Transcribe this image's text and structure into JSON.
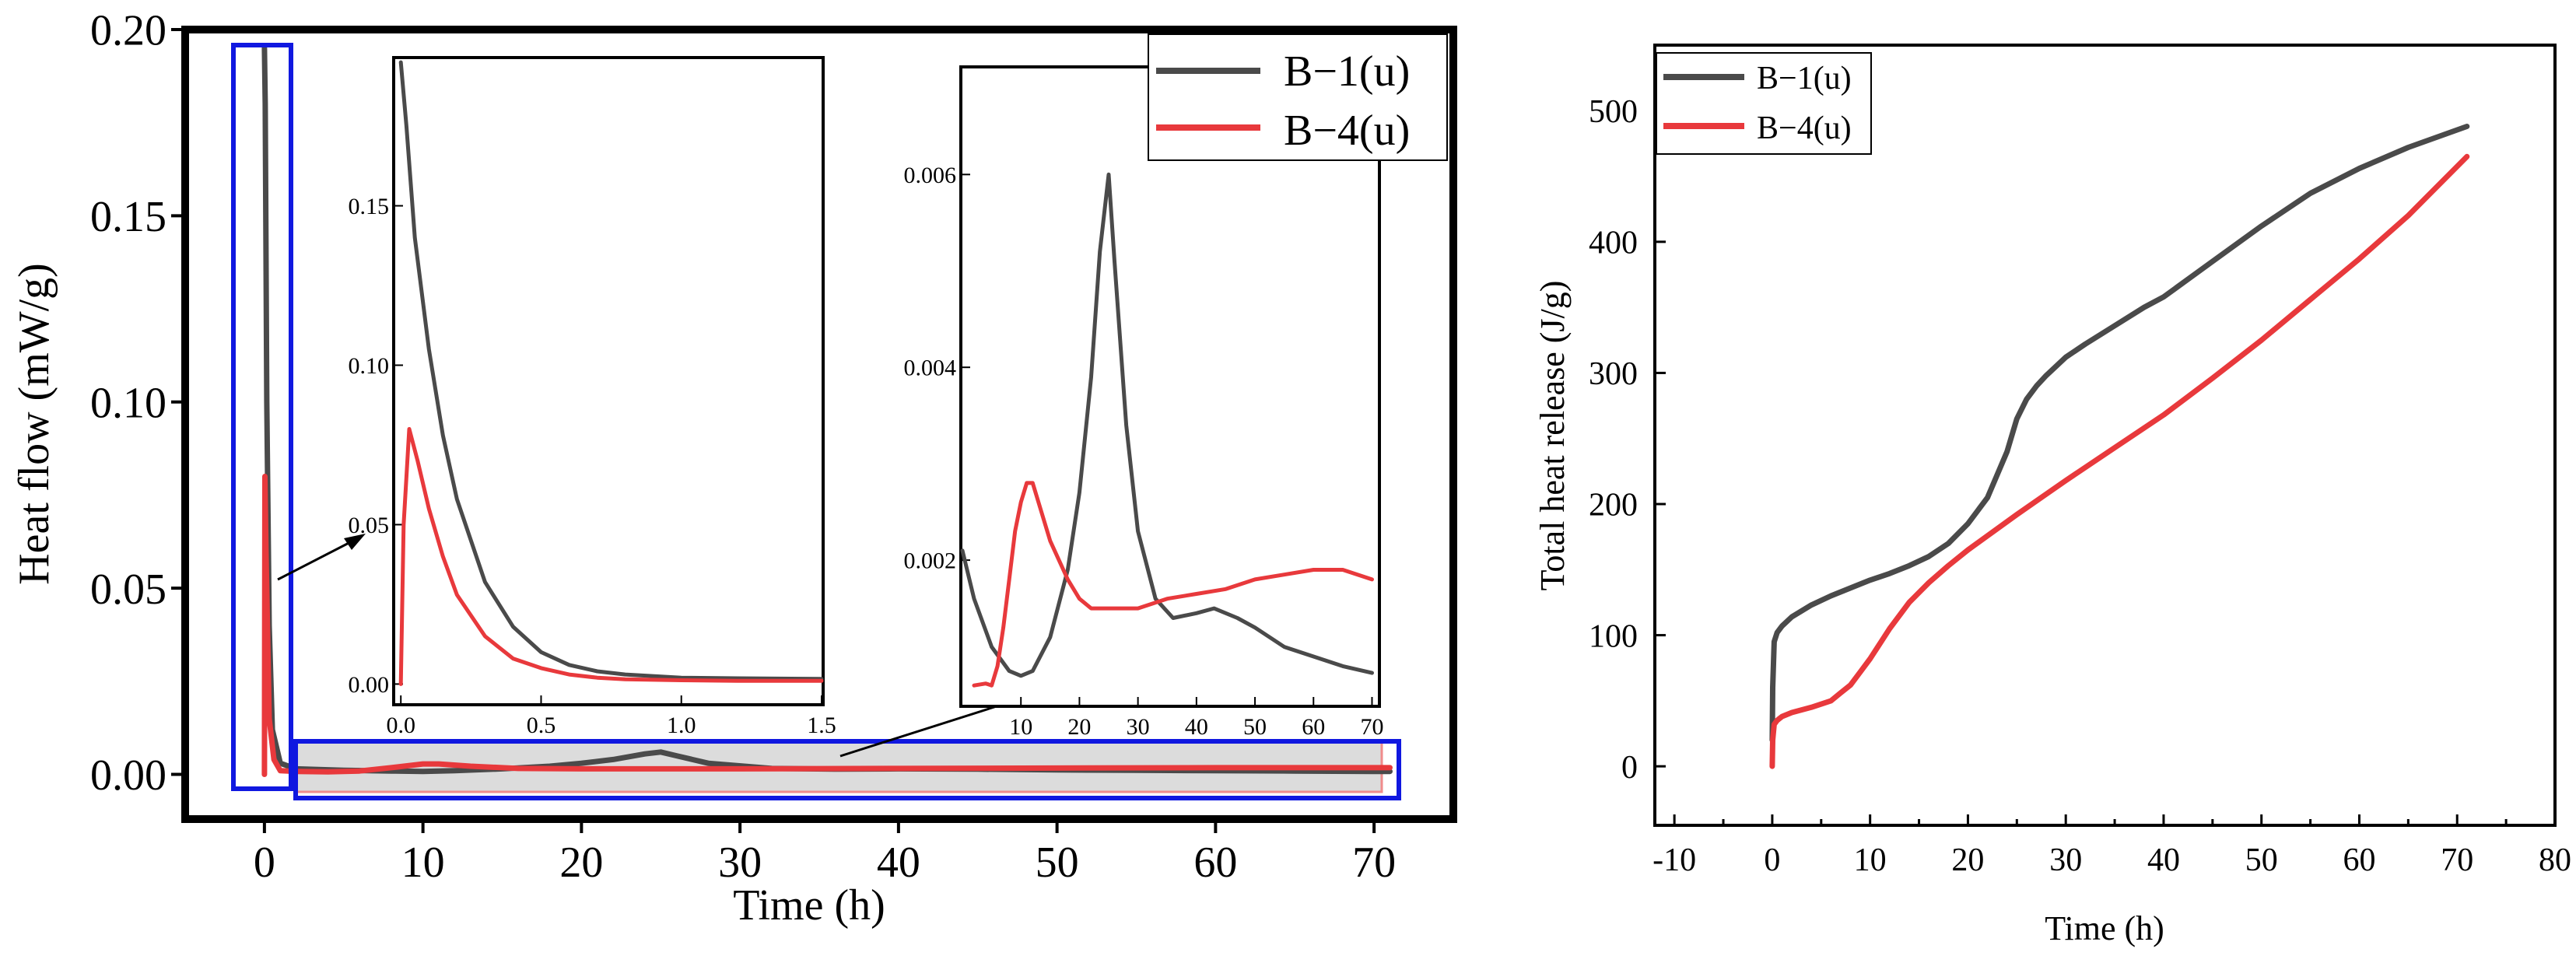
{
  "colors": {
    "b1": "#4a4a4a",
    "b4": "#e8393c",
    "highlight_box": "#1018e0",
    "band_fill": "#dcdcdc",
    "band_edge": "#f08c8c"
  },
  "chart_data": [
    {
      "id": "heat-flow",
      "type": "line",
      "title": "",
      "xlabel": "Time (h)",
      "ylabel": "Heat flow (mW/g)",
      "xlim": [
        -5,
        75
      ],
      "ylim": [
        -0.012,
        0.2
      ],
      "xticks": [
        0,
        10,
        20,
        30,
        40,
        50,
        60,
        70
      ],
      "yticks": [
        0.0,
        0.05,
        0.1,
        0.15,
        0.2
      ],
      "ytick_labels": [
        "0.00",
        "0.05",
        "0.10",
        "0.15",
        "0.20"
      ],
      "legend": {
        "placement": "top-right",
        "entries": [
          "B−1(u)",
          "B−4(u)"
        ]
      },
      "series": [
        {
          "name": "B−1(u)",
          "x": [
            0,
            0.05,
            0.15,
            0.3,
            0.5,
            1,
            2,
            5,
            8,
            10,
            12,
            15,
            18,
            20,
            22,
            24,
            25,
            26,
            28,
            32,
            36,
            40,
            45,
            50,
            55,
            60,
            65,
            70,
            71
          ],
          "y": [
            0.195,
            0.18,
            0.1,
            0.04,
            0.012,
            0.003,
            0.0015,
            0.0011,
            0.0009,
            0.0008,
            0.001,
            0.0015,
            0.0022,
            0.003,
            0.004,
            0.0055,
            0.006,
            0.005,
            0.003,
            0.0016,
            0.0014,
            0.0015,
            0.0014,
            0.0012,
            0.0011,
            0.001,
            0.0009,
            0.0008,
            0.0008
          ]
        },
        {
          "name": "B−4(u)",
          "x": [
            0,
            0.03,
            0.1,
            0.3,
            0.6,
            1,
            2,
            4,
            6,
            8,
            10,
            11,
            13,
            16,
            20,
            25,
            30,
            40,
            50,
            60,
            65,
            70,
            71
          ],
          "y": [
            0.0,
            0.08,
            0.06,
            0.015,
            0.004,
            0.001,
            0.0008,
            0.0007,
            0.0009,
            0.0018,
            0.0028,
            0.0028,
            0.0022,
            0.0016,
            0.0015,
            0.0015,
            0.0015,
            0.0016,
            0.0017,
            0.0018,
            0.0018,
            0.0018,
            0.0018
          ]
        }
      ]
    },
    {
      "id": "inset-1",
      "type": "line",
      "title": "",
      "xlabel": "",
      "ylabel": "",
      "xlim": [
        -0.02,
        1.5
      ],
      "ylim": [
        -0.006,
        0.196
      ],
      "xticks": [
        0.0,
        0.5,
        1.0,
        1.5
      ],
      "xtick_labels": [
        "0.0",
        "0.5",
        "1.0",
        "1.5"
      ],
      "yticks": [
        0.0,
        0.05,
        0.1,
        0.15
      ],
      "ytick_labels": [
        "0.00",
        "0.05",
        "0.10",
        "0.15"
      ],
      "series": [
        {
          "name": "B−1(u)",
          "x": [
            0.0,
            0.02,
            0.05,
            0.1,
            0.15,
            0.2,
            0.3,
            0.4,
            0.5,
            0.6,
            0.7,
            0.8,
            1.0,
            1.2,
            1.5
          ],
          "y": [
            0.195,
            0.175,
            0.14,
            0.105,
            0.078,
            0.058,
            0.032,
            0.018,
            0.01,
            0.006,
            0.004,
            0.003,
            0.002,
            0.0018,
            0.0016
          ]
        },
        {
          "name": "B−4(u)",
          "x": [
            0.0,
            0.01,
            0.03,
            0.06,
            0.1,
            0.15,
            0.2,
            0.3,
            0.4,
            0.5,
            0.6,
            0.7,
            0.8,
            1.0,
            1.2,
            1.5
          ],
          "y": [
            0.0,
            0.05,
            0.08,
            0.07,
            0.055,
            0.04,
            0.028,
            0.015,
            0.008,
            0.005,
            0.003,
            0.002,
            0.0015,
            0.0012,
            0.001,
            0.001
          ]
        }
      ]
    },
    {
      "id": "inset-2",
      "type": "line",
      "title": "",
      "xlabel": "",
      "ylabel": "",
      "xlim": [
        0,
        71
      ],
      "ylim": [
        0.0005,
        0.0071
      ],
      "xticks": [
        10,
        20,
        30,
        40,
        50,
        60,
        70
      ],
      "yticks": [
        0.002,
        0.004,
        0.006
      ],
      "ytick_labels": [
        "0.002",
        "0.004",
        "0.006"
      ],
      "series": [
        {
          "name": "B−1(u)",
          "x": [
            0,
            2,
            5,
            8,
            10,
            12,
            15,
            18,
            20,
            22,
            23.5,
            25,
            26,
            28,
            30,
            33,
            36,
            40,
            43,
            47,
            50,
            55,
            60,
            65,
            70
          ],
          "y": [
            0.0021,
            0.0016,
            0.0011,
            0.00085,
            0.0008,
            0.00085,
            0.0012,
            0.0019,
            0.0027,
            0.0039,
            0.0052,
            0.006,
            0.0051,
            0.0034,
            0.0023,
            0.0016,
            0.0014,
            0.00145,
            0.0015,
            0.0014,
            0.0013,
            0.0011,
            0.001,
            0.0009,
            0.00083
          ]
        },
        {
          "name": "B−4(u)",
          "x": [
            2,
            4,
            5,
            6,
            7,
            8,
            9,
            10,
            11,
            12,
            13,
            15,
            18,
            20,
            22,
            25,
            30,
            35,
            40,
            45,
            50,
            55,
            60,
            65,
            70
          ],
          "y": [
            0.0007,
            0.00072,
            0.0007,
            0.0009,
            0.0013,
            0.0018,
            0.0023,
            0.0026,
            0.0028,
            0.0028,
            0.0026,
            0.0022,
            0.0018,
            0.0016,
            0.0015,
            0.0015,
            0.0015,
            0.0016,
            0.00165,
            0.0017,
            0.0018,
            0.00185,
            0.0019,
            0.0019,
            0.0018
          ]
        }
      ]
    },
    {
      "id": "total-heat",
      "type": "line",
      "title": "",
      "xlabel": "Time (h)",
      "ylabel": "Total heat release (J/g)",
      "xlim": [
        -12,
        80
      ],
      "ylim": [
        -45,
        550
      ],
      "xticks": [
        -10,
        0,
        10,
        20,
        30,
        40,
        50,
        60,
        70,
        80
      ],
      "yticks": [
        0,
        100,
        200,
        300,
        400,
        500
      ],
      "legend": {
        "placement": "top-left",
        "entries": [
          "B−1(u)",
          "B−4(u)"
        ]
      },
      "series": [
        {
          "name": "B−1(u)",
          "x": [
            0,
            0.05,
            0.2,
            0.5,
            1,
            2,
            4,
            6,
            8,
            10,
            12,
            14,
            16,
            18,
            20,
            22,
            24,
            25,
            26,
            27,
            28,
            30,
            32,
            35,
            38,
            40,
            45,
            50,
            55,
            60,
            65,
            71
          ],
          "y": [
            20,
            60,
            95,
            102,
            107,
            114,
            123,
            130,
            136,
            142,
            147,
            153,
            160,
            170,
            185,
            205,
            240,
            265,
            280,
            290,
            298,
            312,
            322,
            336,
            350,
            358,
            385,
            412,
            437,
            456,
            472,
            488
          ]
        },
        {
          "name": "B−4(u)",
          "x": [
            0,
            0.05,
            0.2,
            0.5,
            1,
            2,
            4,
            6,
            7,
            8,
            9,
            10,
            12,
            14,
            16,
            18,
            20,
            25,
            30,
            35,
            40,
            45,
            50,
            55,
            60,
            65,
            71
          ],
          "y": [
            0,
            20,
            32,
            35,
            38,
            41,
            45,
            50,
            56,
            62,
            72,
            82,
            105,
            125,
            140,
            153,
            165,
            192,
            218,
            243,
            268,
            296,
            325,
            356,
            387,
            420,
            465
          ]
        }
      ]
    }
  ]
}
